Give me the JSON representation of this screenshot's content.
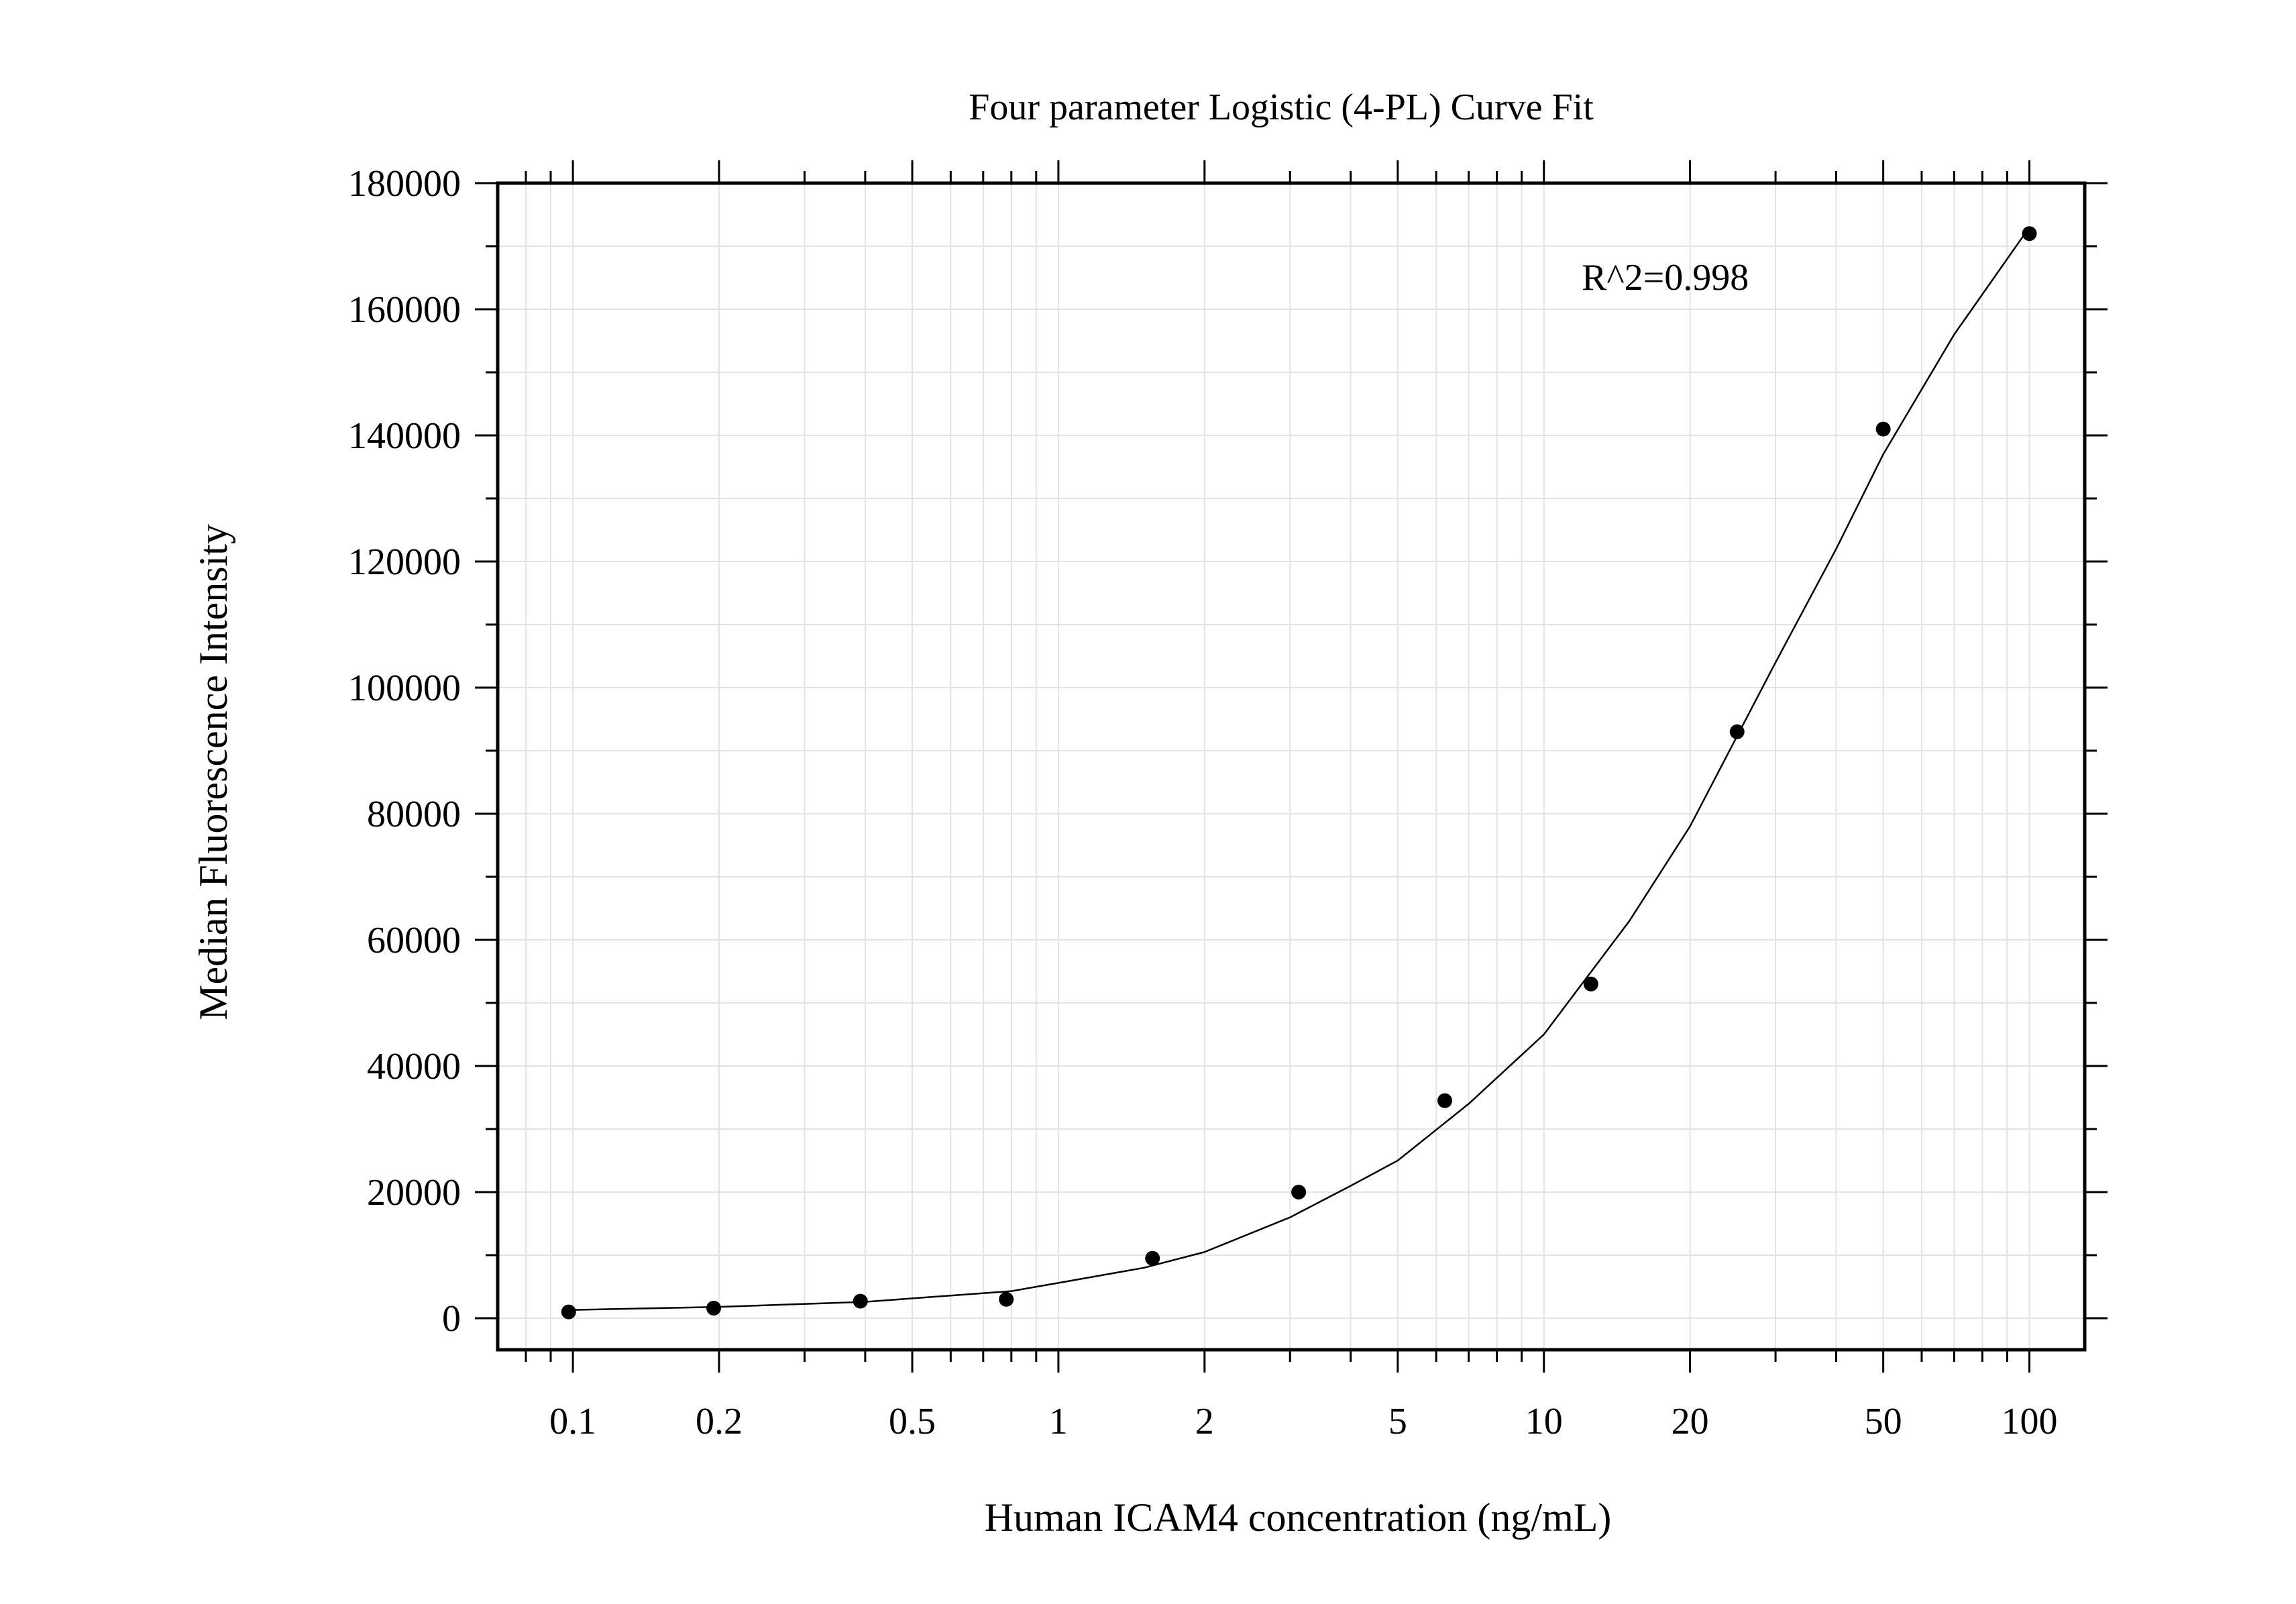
{
  "chart_data": {
    "type": "scatter",
    "title": "Four parameter Logistic (4-PL) Curve Fit",
    "xlabel": "Human ICAM4 concentration (ng/mL)",
    "ylabel": "Median Fluorescence Intensity",
    "x_scale": "log",
    "xlim": [
      0.07,
      130
    ],
    "ylim": [
      -5000,
      180000
    ],
    "x_ticks": [
      {
        "value": 0.1,
        "label": "0.1"
      },
      {
        "value": 0.2,
        "label": "0.2"
      },
      {
        "value": 0.5,
        "label": "0.5"
      },
      {
        "value": 1,
        "label": "1"
      },
      {
        "value": 2,
        "label": "2"
      },
      {
        "value": 5,
        "label": "5"
      },
      {
        "value": 10,
        "label": "10"
      },
      {
        "value": 20,
        "label": "20"
      },
      {
        "value": 50,
        "label": "50"
      },
      {
        "value": 100,
        "label": "100"
      }
    ],
    "y_ticks": [
      {
        "value": 0,
        "label": "0"
      },
      {
        "value": 20000,
        "label": "20000"
      },
      {
        "value": 40000,
        "label": "40000"
      },
      {
        "value": 60000,
        "label": "60000"
      },
      {
        "value": 80000,
        "label": "80000"
      },
      {
        "value": 100000,
        "label": "100000"
      },
      {
        "value": 120000,
        "label": "120000"
      },
      {
        "value": 140000,
        "label": "140000"
      },
      {
        "value": 160000,
        "label": "160000"
      },
      {
        "value": 180000,
        "label": "180000"
      }
    ],
    "grid": true,
    "annotation": "R^2=0.998",
    "points": [
      {
        "x": 0.098,
        "y": 1000
      },
      {
        "x": 0.195,
        "y": 1600
      },
      {
        "x": 0.391,
        "y": 2700
      },
      {
        "x": 0.781,
        "y": 3000
      },
      {
        "x": 1.5625,
        "y": 9500
      },
      {
        "x": 3.125,
        "y": 20000
      },
      {
        "x": 6.25,
        "y": 34500
      },
      {
        "x": 12.5,
        "y": 53000
      },
      {
        "x": 25,
        "y": 93000
      },
      {
        "x": 50,
        "y": 141000
      },
      {
        "x": 100,
        "y": 172000
      }
    ],
    "fit_curve": [
      {
        "x": 0.098,
        "y": 1300
      },
      {
        "x": 0.2,
        "y": 1800
      },
      {
        "x": 0.4,
        "y": 2600
      },
      {
        "x": 0.8,
        "y": 4300
      },
      {
        "x": 1.0,
        "y": 5600
      },
      {
        "x": 1.5,
        "y": 8000
      },
      {
        "x": 2.0,
        "y": 10500
      },
      {
        "x": 3.0,
        "y": 16000
      },
      {
        "x": 4.0,
        "y": 21000
      },
      {
        "x": 5.0,
        "y": 25000
      },
      {
        "x": 7.0,
        "y": 34000
      },
      {
        "x": 10.0,
        "y": 45000
      },
      {
        "x": 15.0,
        "y": 63000
      },
      {
        "x": 20.0,
        "y": 78000
      },
      {
        "x": 30.0,
        "y": 104000
      },
      {
        "x": 40.0,
        "y": 122000
      },
      {
        "x": 50.0,
        "y": 137000
      },
      {
        "x": 70.0,
        "y": 156000
      },
      {
        "x": 100.0,
        "y": 173000
      }
    ]
  }
}
